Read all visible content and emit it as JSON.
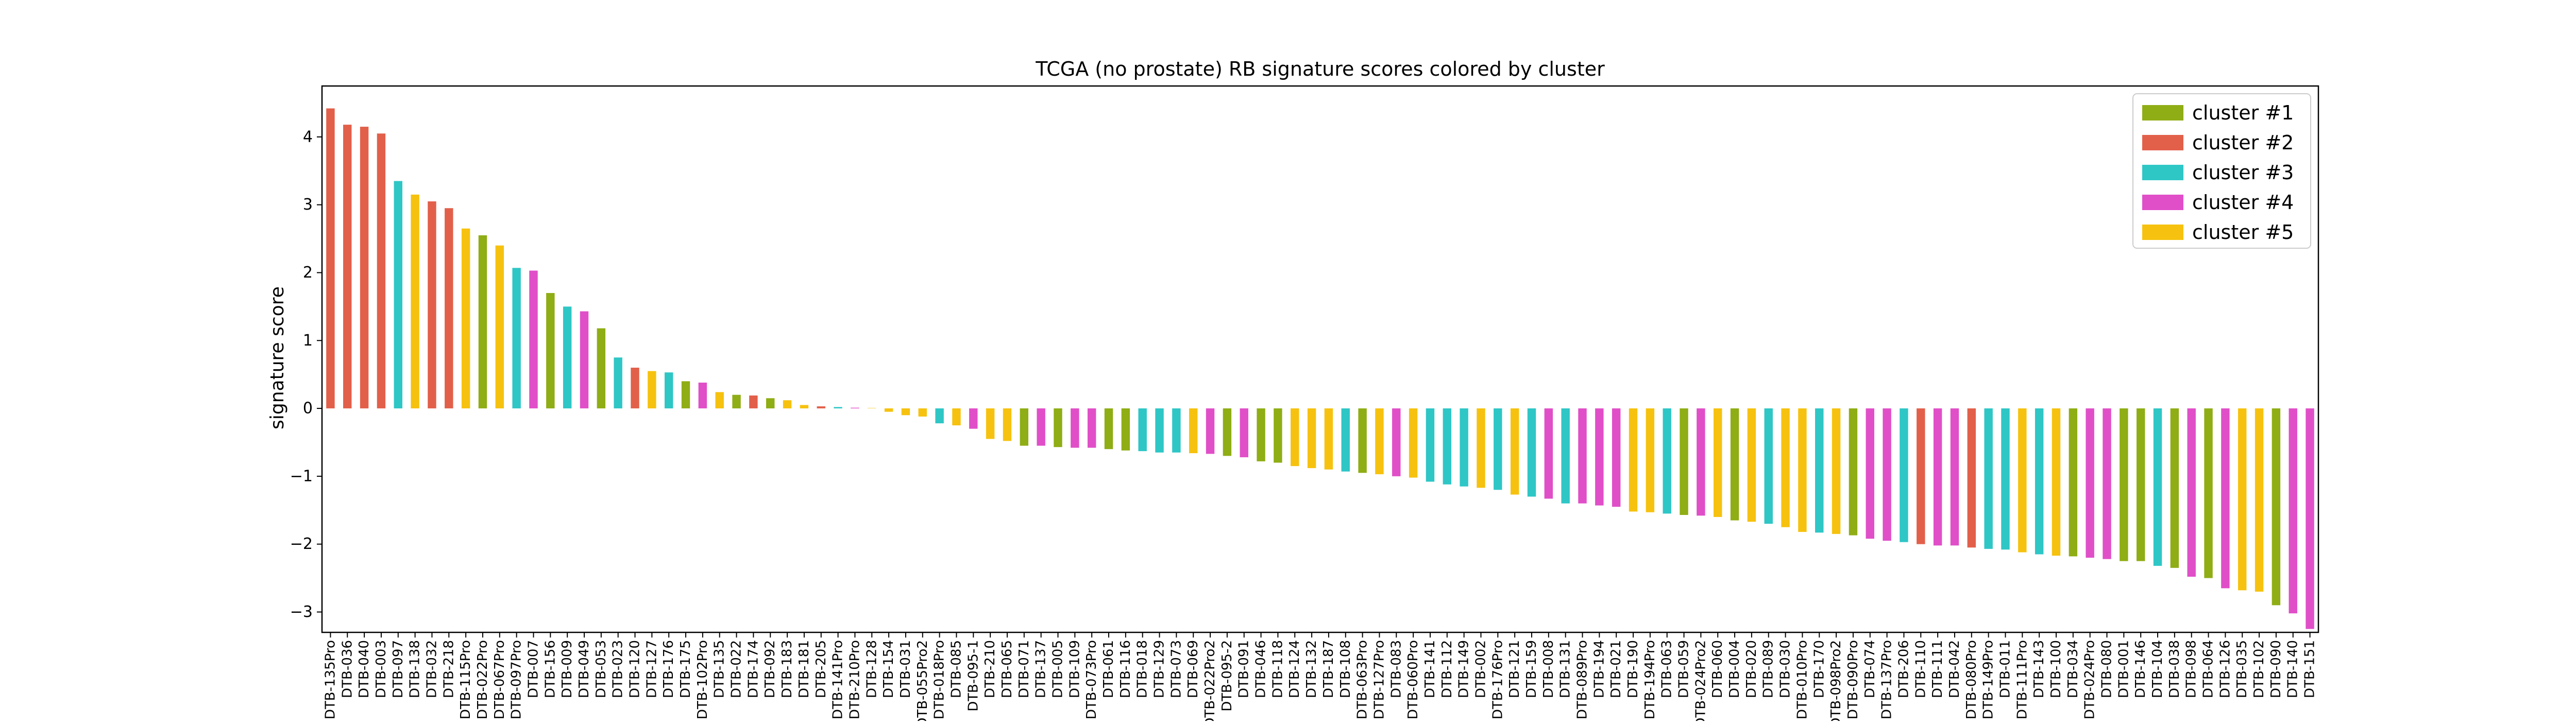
{
  "chart_data": {
    "type": "bar",
    "title": "TCGA (no prostate) RB signature scores colored by cluster",
    "xlabel": "",
    "ylabel": "signature score",
    "ylim": [
      -3.3,
      4.75
    ],
    "yticks": [
      -3,
      -2,
      -1,
      0,
      1,
      2,
      3,
      4
    ],
    "grid": false,
    "legend_position": "top-right",
    "clusters": [
      {
        "name": "cluster #1",
        "color": "#8fad15"
      },
      {
        "name": "cluster #2",
        "color": "#e2604a"
      },
      {
        "name": "cluster #3",
        "color": "#2fc6c6"
      },
      {
        "name": "cluster #4",
        "color": "#e04fc8"
      },
      {
        "name": "cluster #5",
        "color": "#f6c20f"
      }
    ],
    "bars": [
      {
        "label": "DTB-135Pro",
        "value": 4.42,
        "cluster": 2
      },
      {
        "label": "DTB-036",
        "value": 4.18,
        "cluster": 2
      },
      {
        "label": "DTB-040",
        "value": 4.15,
        "cluster": 2
      },
      {
        "label": "DTB-003",
        "value": 4.05,
        "cluster": 2
      },
      {
        "label": "DTB-097",
        "value": 3.35,
        "cluster": 3
      },
      {
        "label": "DTB-138",
        "value": 3.15,
        "cluster": 5
      },
      {
        "label": "DTB-032",
        "value": 3.05,
        "cluster": 2
      },
      {
        "label": "DTB-218",
        "value": 2.95,
        "cluster": 2
      },
      {
        "label": "DTB-115Pro",
        "value": 2.65,
        "cluster": 5
      },
      {
        "label": "DTB-022Pro",
        "value": 2.55,
        "cluster": 1
      },
      {
        "label": "DTB-067Pro",
        "value": 2.4,
        "cluster": 5
      },
      {
        "label": "DTB-097Pro",
        "value": 2.07,
        "cluster": 3
      },
      {
        "label": "DTB-007",
        "value": 2.03,
        "cluster": 4
      },
      {
        "label": "DTB-156",
        "value": 1.7,
        "cluster": 1
      },
      {
        "label": "DTB-009",
        "value": 1.5,
        "cluster": 3
      },
      {
        "label": "DTB-049",
        "value": 1.43,
        "cluster": 4
      },
      {
        "label": "DTB-053",
        "value": 1.18,
        "cluster": 1
      },
      {
        "label": "DTB-023",
        "value": 0.75,
        "cluster": 3
      },
      {
        "label": "DTB-120",
        "value": 0.6,
        "cluster": 2
      },
      {
        "label": "DTB-127",
        "value": 0.55,
        "cluster": 5
      },
      {
        "label": "DTB-176",
        "value": 0.53,
        "cluster": 3
      },
      {
        "label": "DTB-175",
        "value": 0.4,
        "cluster": 1
      },
      {
        "label": "DTB-102Pro",
        "value": 0.38,
        "cluster": 4
      },
      {
        "label": "DTB-135",
        "value": 0.24,
        "cluster": 5
      },
      {
        "label": "DTB-022",
        "value": 0.2,
        "cluster": 1
      },
      {
        "label": "DTB-174",
        "value": 0.19,
        "cluster": 2
      },
      {
        "label": "DTB-092",
        "value": 0.15,
        "cluster": 1
      },
      {
        "label": "DTB-183",
        "value": 0.12,
        "cluster": 5
      },
      {
        "label": "DTB-181",
        "value": 0.05,
        "cluster": 5
      },
      {
        "label": "DTB-205",
        "value": 0.03,
        "cluster": 2
      },
      {
        "label": "DTB-141Pro",
        "value": 0.02,
        "cluster": 3
      },
      {
        "label": "DTB-210Pro",
        "value": 0.01,
        "cluster": 4
      },
      {
        "label": "DTB-128",
        "value": 0.005,
        "cluster": 5
      },
      {
        "label": "DTB-154",
        "value": -0.05,
        "cluster": 5
      },
      {
        "label": "DTB-031",
        "value": -0.1,
        "cluster": 5
      },
      {
        "label": "DTB-055Pro2",
        "value": -0.12,
        "cluster": 5
      },
      {
        "label": "DTB-018Pro",
        "value": -0.22,
        "cluster": 3
      },
      {
        "label": "DTB-085",
        "value": -0.25,
        "cluster": 5
      },
      {
        "label": "DTB-095-1",
        "value": -0.3,
        "cluster": 4
      },
      {
        "label": "DTB-210",
        "value": -0.45,
        "cluster": 5
      },
      {
        "label": "DTB-065",
        "value": -0.48,
        "cluster": 5
      },
      {
        "label": "DTB-071",
        "value": -0.55,
        "cluster": 1
      },
      {
        "label": "DTB-137",
        "value": -0.55,
        "cluster": 4
      },
      {
        "label": "DTB-005",
        "value": -0.57,
        "cluster": 1
      },
      {
        "label": "DTB-109",
        "value": -0.58,
        "cluster": 4
      },
      {
        "label": "DTB-073Pro",
        "value": -0.58,
        "cluster": 4
      },
      {
        "label": "DTB-061",
        "value": -0.6,
        "cluster": 1
      },
      {
        "label": "DTB-116",
        "value": -0.62,
        "cluster": 1
      },
      {
        "label": "DTB-018",
        "value": -0.63,
        "cluster": 3
      },
      {
        "label": "DTB-129",
        "value": -0.65,
        "cluster": 3
      },
      {
        "label": "DTB-073",
        "value": -0.65,
        "cluster": 3
      },
      {
        "label": "DTB-069",
        "value": -0.66,
        "cluster": 5
      },
      {
        "label": "DTB-022Pro2",
        "value": -0.67,
        "cluster": 4
      },
      {
        "label": "DTB-095-2",
        "value": -0.7,
        "cluster": 1
      },
      {
        "label": "DTB-091",
        "value": -0.72,
        "cluster": 4
      },
      {
        "label": "DTB-046",
        "value": -0.78,
        "cluster": 1
      },
      {
        "label": "DTB-118",
        "value": -0.8,
        "cluster": 1
      },
      {
        "label": "DTB-124",
        "value": -0.85,
        "cluster": 5
      },
      {
        "label": "DTB-132",
        "value": -0.88,
        "cluster": 5
      },
      {
        "label": "DTB-187",
        "value": -0.9,
        "cluster": 5
      },
      {
        "label": "DTB-108",
        "value": -0.93,
        "cluster": 3
      },
      {
        "label": "DTB-063Pro",
        "value": -0.95,
        "cluster": 1
      },
      {
        "label": "DTB-127Pro",
        "value": -0.97,
        "cluster": 5
      },
      {
        "label": "DTB-083",
        "value": -1.0,
        "cluster": 4
      },
      {
        "label": "DTB-060Pro",
        "value": -1.02,
        "cluster": 5
      },
      {
        "label": "DTB-141",
        "value": -1.08,
        "cluster": 3
      },
      {
        "label": "DTB-112",
        "value": -1.12,
        "cluster": 3
      },
      {
        "label": "DTB-149",
        "value": -1.15,
        "cluster": 3
      },
      {
        "label": "DTB-002",
        "value": -1.17,
        "cluster": 5
      },
      {
        "label": "DTB-176Pro",
        "value": -1.2,
        "cluster": 3
      },
      {
        "label": "DTB-121",
        "value": -1.27,
        "cluster": 5
      },
      {
        "label": "DTB-159",
        "value": -1.3,
        "cluster": 3
      },
      {
        "label": "DTB-008",
        "value": -1.33,
        "cluster": 4
      },
      {
        "label": "DTB-131",
        "value": -1.4,
        "cluster": 3
      },
      {
        "label": "DTB-089Pro",
        "value": -1.4,
        "cluster": 4
      },
      {
        "label": "DTB-194",
        "value": -1.43,
        "cluster": 4
      },
      {
        "label": "DTB-021",
        "value": -1.45,
        "cluster": 4
      },
      {
        "label": "DTB-190",
        "value": -1.52,
        "cluster": 5
      },
      {
        "label": "DTB-194Pro",
        "value": -1.53,
        "cluster": 5
      },
      {
        "label": "DTB-063",
        "value": -1.55,
        "cluster": 3
      },
      {
        "label": "DTB-059",
        "value": -1.57,
        "cluster": 1
      },
      {
        "label": "DTB-024Pro2",
        "value": -1.58,
        "cluster": 4
      },
      {
        "label": "DTB-060",
        "value": -1.6,
        "cluster": 5
      },
      {
        "label": "DTB-004",
        "value": -1.65,
        "cluster": 1
      },
      {
        "label": "DTB-020",
        "value": -1.67,
        "cluster": 5
      },
      {
        "label": "DTB-089",
        "value": -1.7,
        "cluster": 3
      },
      {
        "label": "DTB-030",
        "value": -1.75,
        "cluster": 5
      },
      {
        "label": "DTB-010Pro",
        "value": -1.82,
        "cluster": 5
      },
      {
        "label": "DTB-170",
        "value": -1.83,
        "cluster": 3
      },
      {
        "label": "DTB-098Pro2",
        "value": -1.85,
        "cluster": 5
      },
      {
        "label": "DTB-090Pro",
        "value": -1.87,
        "cluster": 1
      },
      {
        "label": "DTB-074",
        "value": -1.92,
        "cluster": 4
      },
      {
        "label": "DTB-137Pro",
        "value": -1.95,
        "cluster": 4
      },
      {
        "label": "DTB-206",
        "value": -1.97,
        "cluster": 3
      },
      {
        "label": "DTB-110",
        "value": -2.0,
        "cluster": 2
      },
      {
        "label": "DTB-111",
        "value": -2.02,
        "cluster": 4
      },
      {
        "label": "DTB-042",
        "value": -2.02,
        "cluster": 4
      },
      {
        "label": "DTB-080Pro",
        "value": -2.05,
        "cluster": 2
      },
      {
        "label": "DTB-149Pro",
        "value": -2.07,
        "cluster": 3
      },
      {
        "label": "DTB-011",
        "value": -2.08,
        "cluster": 3
      },
      {
        "label": "DTB-111Pro",
        "value": -2.12,
        "cluster": 5
      },
      {
        "label": "DTB-143",
        "value": -2.15,
        "cluster": 3
      },
      {
        "label": "DTB-100",
        "value": -2.17,
        "cluster": 5
      },
      {
        "label": "DTB-034",
        "value": -2.18,
        "cluster": 1
      },
      {
        "label": "DTB-024Pro",
        "value": -2.2,
        "cluster": 4
      },
      {
        "label": "DTB-080",
        "value": -2.22,
        "cluster": 4
      },
      {
        "label": "DTB-001",
        "value": -2.25,
        "cluster": 1
      },
      {
        "label": "DTB-146",
        "value": -2.25,
        "cluster": 1
      },
      {
        "label": "DTB-104",
        "value": -2.32,
        "cluster": 3
      },
      {
        "label": "DTB-038",
        "value": -2.35,
        "cluster": 1
      },
      {
        "label": "DTB-098",
        "value": -2.48,
        "cluster": 4
      },
      {
        "label": "DTB-064",
        "value": -2.5,
        "cluster": 1
      },
      {
        "label": "DTB-126",
        "value": -2.65,
        "cluster": 4
      },
      {
        "label": "DTB-035",
        "value": -2.68,
        "cluster": 5
      },
      {
        "label": "DTB-102",
        "value": -2.7,
        "cluster": 5
      },
      {
        "label": "DTB-090",
        "value": -2.9,
        "cluster": 1
      },
      {
        "label": "DTB-140",
        "value": -3.02,
        "cluster": 4
      },
      {
        "label": "DTB-151",
        "value": -3.25,
        "cluster": 4
      }
    ]
  }
}
